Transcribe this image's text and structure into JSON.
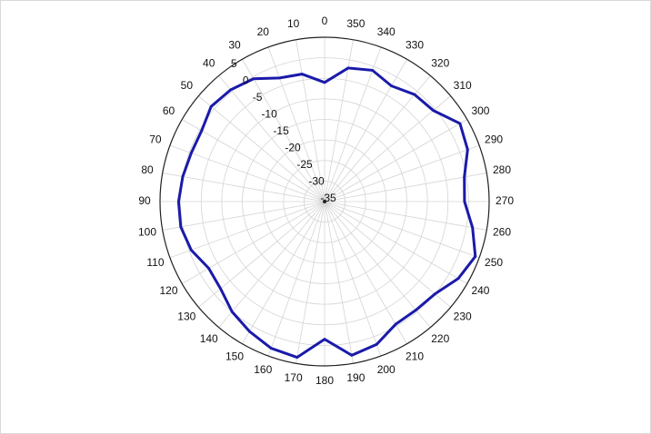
{
  "chart_data": {
    "type": "line",
    "subtype": "polar",
    "title": "",
    "angle_direction": "counterclockwise",
    "zero_angle_position": "top",
    "angular_tick_labels": [
      "0",
      "10",
      "20",
      "30",
      "40",
      "50",
      "60",
      "70",
      "80",
      "90",
      "100",
      "110",
      "120",
      "130",
      "140",
      "150",
      "160",
      "170",
      "180",
      "190",
      "200",
      "210",
      "220",
      "230",
      "240",
      "250",
      "260",
      "270",
      "280",
      "290",
      "300",
      "310",
      "320",
      "330",
      "340",
      "350"
    ],
    "radial_tick_labels": [
      "5",
      "0",
      "-5",
      "-10",
      "-15",
      "-20",
      "-25",
      "-30",
      "-35"
    ],
    "radial_range": [
      -35,
      5
    ],
    "grid": true,
    "series": [
      {
        "color": "#1a1aaa",
        "angles_deg": [
          0,
          10,
          20,
          30,
          40,
          50,
          60,
          70,
          80,
          90,
          100,
          110,
          120,
          130,
          140,
          150,
          160,
          170,
          180,
          190,
          200,
          210,
          220,
          230,
          240,
          250,
          260,
          270,
          280,
          290,
          300,
          310,
          320,
          330,
          340,
          350
        ],
        "values": [
          -6,
          -3.5,
          -3,
          -0.5,
          0.5,
          1,
          -0.5,
          -0.5,
          0,
          0.5,
          0.5,
          -0.5,
          -2.5,
          -2,
          0,
          1.5,
          3,
          3.5,
          -1.5,
          3,
          2,
          -0.5,
          -0.5,
          0,
          2.5,
          4,
          1.5,
          -1,
          -0.5,
          2,
          3,
          -0.5,
          -1,
          -2.5,
          -1,
          -2
        ]
      }
    ]
  }
}
